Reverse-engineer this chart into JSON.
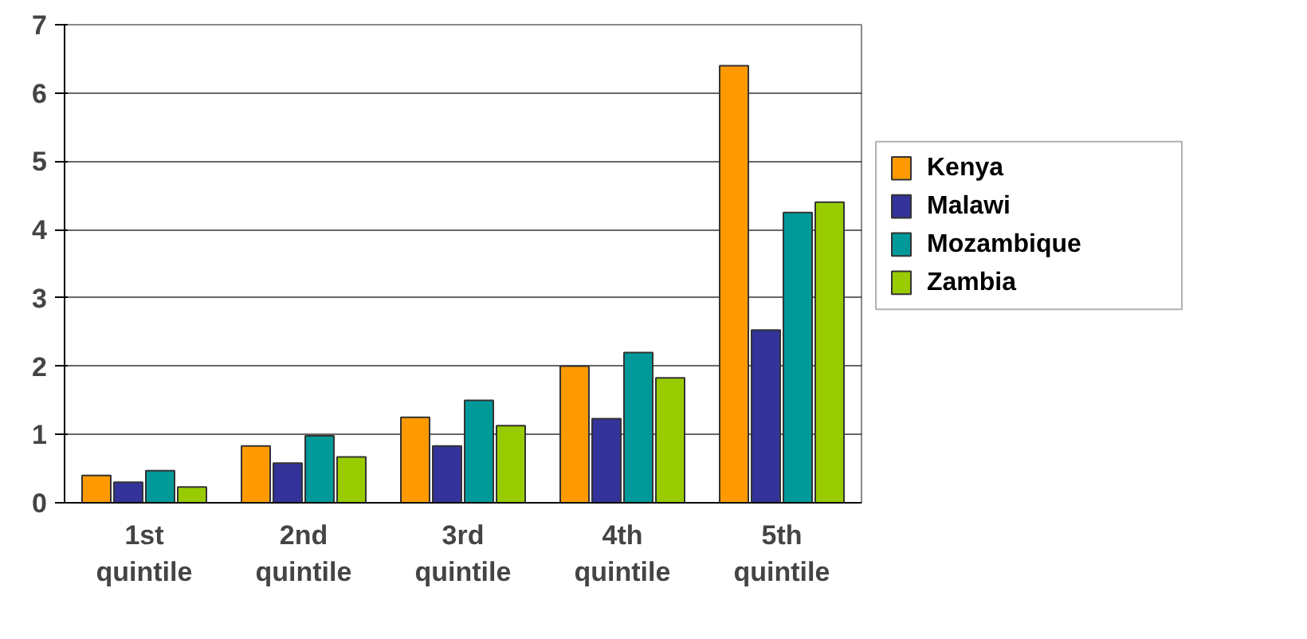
{
  "chart_data": {
    "type": "bar",
    "categories": [
      "1st quintile",
      "2nd quintile",
      "3rd quintile",
      "4th quintile",
      "5th quintile"
    ],
    "series": [
      {
        "name": "Kenya",
        "color": "#ff9900",
        "values": [
          0.4,
          0.83,
          1.25,
          2.0,
          6.4
        ]
      },
      {
        "name": "Malawi",
        "color": "#333399",
        "values": [
          0.3,
          0.58,
          0.83,
          1.23,
          2.53
        ]
      },
      {
        "name": "Mozambique",
        "color": "#009999",
        "values": [
          0.47,
          0.98,
          1.5,
          2.2,
          4.25
        ]
      },
      {
        "name": "Zambia",
        "color": "#99cc00",
        "values": [
          0.23,
          0.67,
          1.13,
          1.83,
          4.4
        ]
      }
    ],
    "ylim": [
      0,
      7
    ],
    "yticks": [
      0,
      1,
      2,
      3,
      4,
      5,
      6,
      7
    ],
    "grid": "y",
    "legend": "right"
  }
}
